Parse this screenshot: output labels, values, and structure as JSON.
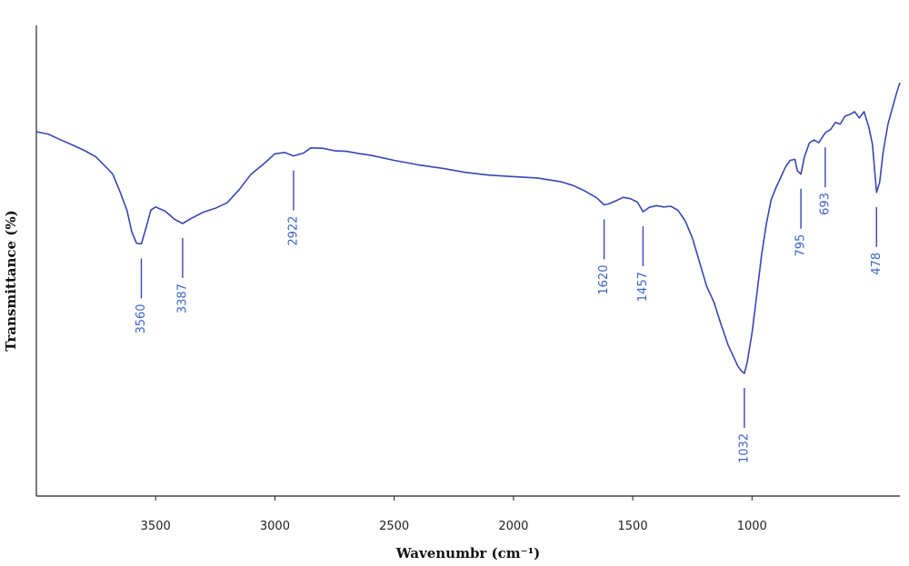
{
  "chart_data": {
    "type": "line",
    "title": "",
    "xlabel": "Wavenumbr (cm⁻¹)",
    "ylabel": "Transmittance (%)",
    "xlim": [
      4000,
      380
    ],
    "x_reversed": true,
    "ylim": [
      0,
      100
    ],
    "y_ticks_shown": false,
    "grid": false,
    "x_ticks": [
      3500,
      3000,
      2500,
      2000,
      1500,
      1000
    ],
    "x_tick_labels": [
      "3500",
      "3000",
      "2500",
      "2000",
      "1500",
      "1000"
    ],
    "color": "#3a46b4",
    "label_color": "#3a63c8",
    "series": [
      {
        "x": [
          4000,
          3950,
          3900,
          3850,
          3800,
          3750,
          3700,
          3680,
          3650,
          3620,
          3600,
          3580,
          3560,
          3540,
          3520,
          3500,
          3460,
          3420,
          3387,
          3350,
          3300,
          3250,
          3200,
          3150,
          3100,
          3050,
          3000,
          2960,
          2922,
          2880,
          2850,
          2800,
          2750,
          2700,
          2650,
          2600,
          2500,
          2400,
          2300,
          2200,
          2100,
          2000,
          1900,
          1800,
          1750,
          1700,
          1650,
          1620,
          1600,
          1570,
          1540,
          1510,
          1480,
          1457,
          1430,
          1400,
          1370,
          1340,
          1310,
          1280,
          1250,
          1220,
          1190,
          1160,
          1130,
          1100,
          1080,
          1060,
          1045,
          1032,
          1020,
          1000,
          980,
          960,
          940,
          920,
          900,
          880,
          860,
          840,
          820,
          810,
          795,
          780,
          760,
          740,
          720,
          693,
          670,
          650,
          630,
          610,
          590,
          570,
          550,
          530,
          510,
          495,
          478,
          465,
          450,
          430,
          410,
          395,
          385,
          380
        ],
        "y": [
          90.8,
          90.1,
          88.5,
          87.0,
          85.4,
          83.5,
          80.0,
          78.5,
          73.5,
          68.0,
          61.8,
          58.5,
          58.3,
          63.0,
          68.1,
          69.0,
          67.8,
          65.4,
          64.2,
          65.7,
          67.5,
          68.6,
          70.2,
          74.0,
          78.5,
          81.3,
          84.4,
          84.8,
          83.8,
          84.6,
          86.1,
          86.0,
          85.3,
          85.1,
          84.5,
          84.0,
          82.5,
          81.2,
          80.2,
          79.0,
          78.2,
          77.8,
          77.4,
          76.3,
          75.2,
          73.6,
          71.6,
          69.6,
          69.9,
          70.8,
          71.8,
          71.4,
          70.4,
          67.6,
          68.9,
          69.4,
          69.0,
          69.2,
          68.0,
          65.0,
          60.0,
          53.0,
          46.0,
          41.5,
          35.0,
          29.0,
          26.0,
          23.0,
          21.5,
          20.8,
          24.0,
          32.5,
          43.5,
          55.0,
          64.0,
          71.0,
          74.5,
          77.5,
          80.5,
          82.5,
          82.8,
          79.5,
          78.5,
          83.5,
          87.5,
          88.4,
          87.6,
          90.5,
          91.5,
          93.5,
          93.0,
          95.3,
          95.8,
          96.6,
          94.8,
          96.6,
          92.0,
          87.1,
          73.2,
          76.1,
          85.0,
          93.0,
          98.0,
          101.8,
          104.0,
          105.0
        ]
      }
    ],
    "peaks": [
      {
        "x": 3560,
        "label": "3560"
      },
      {
        "x": 3387,
        "label": "3387"
      },
      {
        "x": 2922,
        "label": "2922"
      },
      {
        "x": 1620,
        "label": "1620"
      },
      {
        "x": 1457,
        "label": "1457"
      },
      {
        "x": 1032,
        "label": "1032"
      },
      {
        "x": 795,
        "label": "795"
      },
      {
        "x": 693,
        "label": "693"
      },
      {
        "x": 478,
        "label": "478"
      }
    ]
  }
}
